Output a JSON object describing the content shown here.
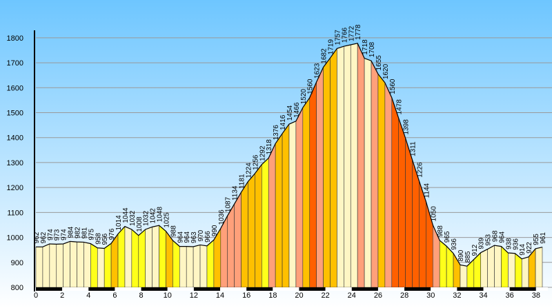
{
  "chart_data": {
    "type": "area",
    "x": [
      0,
      0.52,
      1.04,
      1.56,
      2.08,
      2.6,
      3.12,
      3.64,
      4.16,
      4.68,
      5.2,
      5.72,
      6.24,
      6.76,
      7.28,
      7.8,
      8.32,
      8.84,
      9.36,
      9.88,
      10.4,
      10.92,
      11.44,
      11.96,
      12.48,
      13,
      13.52,
      14.04,
      14.56,
      15.08,
      15.6,
      16.12,
      16.64,
      17.16,
      17.68,
      18.2,
      18.72,
      19.24,
      19.76,
      20.28,
      20.8,
      21.32,
      21.84,
      22.36,
      22.88,
      23.4,
      23.92,
      24.44,
      24.96,
      25.48,
      26,
      26.52,
      27.04,
      27.56,
      28.08,
      28.6,
      29.12,
      29.64,
      30.16,
      30.68,
      31.2,
      31.72,
      32.24,
      32.76,
      33.28,
      33.8,
      34.32,
      34.84,
      35.36,
      35.88,
      36.4,
      36.92,
      37.44,
      37.96,
      38.48
    ],
    "values": [
      962,
      962,
      974,
      973,
      974,
      984,
      982,
      981,
      975,
      958,
      956,
      976,
      1014,
      1044,
      1032,
      1008,
      1032,
      1042,
      1048,
      1025,
      988,
      964,
      964,
      963,
      970,
      966,
      990,
      1036,
      1087,
      1134,
      1181,
      1224,
      1256,
      1292,
      1318,
      1376,
      1416,
      1454,
      1466,
      1520,
      1560,
      1623,
      1682,
      1719,
      1757,
      1766,
      1772,
      1778,
      1718,
      1708,
      1655,
      1620,
      1560,
      1478,
      1398,
      1311,
      1226,
      1144,
      1050,
      988,
      965,
      936,
      890,
      885,
      912,
      939,
      953,
      968,
      964,
      938,
      936,
      914,
      922,
      955,
      961
    ],
    "xlim": [
      0,
      38.9
    ],
    "ylim": [
      800,
      1830
    ],
    "xticks": [
      0,
      2,
      4,
      6,
      8,
      10,
      12,
      14,
      16,
      18,
      20,
      22,
      24,
      26,
      28,
      30,
      32,
      34,
      36,
      38
    ],
    "yticks": [
      800,
      900,
      1000,
      1100,
      1200,
      1300,
      1400,
      1500,
      1600,
      1700,
      1800
    ],
    "grid": true
  }
}
